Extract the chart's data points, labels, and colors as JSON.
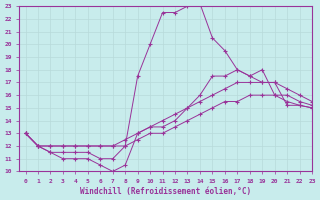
{
  "title": "",
  "xlabel": "Windchill (Refroidissement éolien,°C)",
  "ylabel": "",
  "xlim": [
    -0.5,
    23
  ],
  "ylim": [
    10,
    23
  ],
  "xticks": [
    0,
    1,
    2,
    3,
    4,
    5,
    6,
    7,
    8,
    9,
    10,
    11,
    12,
    13,
    14,
    15,
    16,
    17,
    18,
    19,
    20,
    21,
    22,
    23
  ],
  "yticks": [
    10,
    11,
    12,
    13,
    14,
    15,
    16,
    17,
    18,
    19,
    20,
    21,
    22,
    23
  ],
  "bg_color": "#c8ecec",
  "line_color": "#993399",
  "grid_color": "#aadddd",
  "lines": [
    {
      "x": [
        0,
        1,
        2,
        3,
        4,
        5,
        6,
        7,
        8,
        9,
        10,
        11,
        12,
        13,
        14,
        15,
        16,
        17,
        18,
        19,
        20,
        21,
        22,
        23
      ],
      "y": [
        13,
        12,
        11.5,
        11.5,
        11.5,
        11.5,
        11,
        11,
        12,
        17.5,
        20,
        22.5,
        22.5,
        23,
        23.2,
        20.5,
        19.5,
        18,
        17.5,
        18,
        16,
        15.5,
        15.2,
        15
      ],
      "marker": "+"
    },
    {
      "x": [
        0,
        1,
        2,
        3,
        4,
        5,
        6,
        7,
        8,
        9,
        10,
        11,
        12,
        13,
        14,
        15,
        16,
        17,
        18,
        19,
        20,
        21,
        22,
        23
      ],
      "y": [
        13,
        12,
        11.5,
        11,
        11,
        11,
        10.5,
        10,
        10.5,
        13,
        13.5,
        13.5,
        14,
        15,
        16,
        17.5,
        17.5,
        18,
        17.5,
        17,
        17,
        15.2,
        15.2,
        15
      ],
      "marker": "+"
    },
    {
      "x": [
        0,
        1,
        2,
        3,
        4,
        5,
        6,
        7,
        8,
        9,
        10,
        11,
        12,
        13,
        14,
        15,
        16,
        17,
        18,
        19,
        20,
        21,
        22,
        23
      ],
      "y": [
        13,
        12,
        12,
        12,
        12,
        12,
        12,
        12,
        12.5,
        13,
        13.5,
        14,
        14.5,
        15,
        15.5,
        16,
        16.5,
        17,
        17,
        17,
        17,
        16.5,
        16,
        15.5
      ],
      "marker": "+"
    },
    {
      "x": [
        0,
        1,
        2,
        3,
        4,
        5,
        6,
        7,
        8,
        9,
        10,
        11,
        12,
        13,
        14,
        15,
        16,
        17,
        18,
        19,
        20,
        21,
        22,
        23
      ],
      "y": [
        13,
        12,
        12,
        12,
        12,
        12,
        12,
        12,
        12,
        12.5,
        13,
        13,
        13.5,
        14,
        14.5,
        15,
        15.5,
        15.5,
        16,
        16,
        16,
        16,
        15.5,
        15.2
      ],
      "marker": "+"
    }
  ]
}
